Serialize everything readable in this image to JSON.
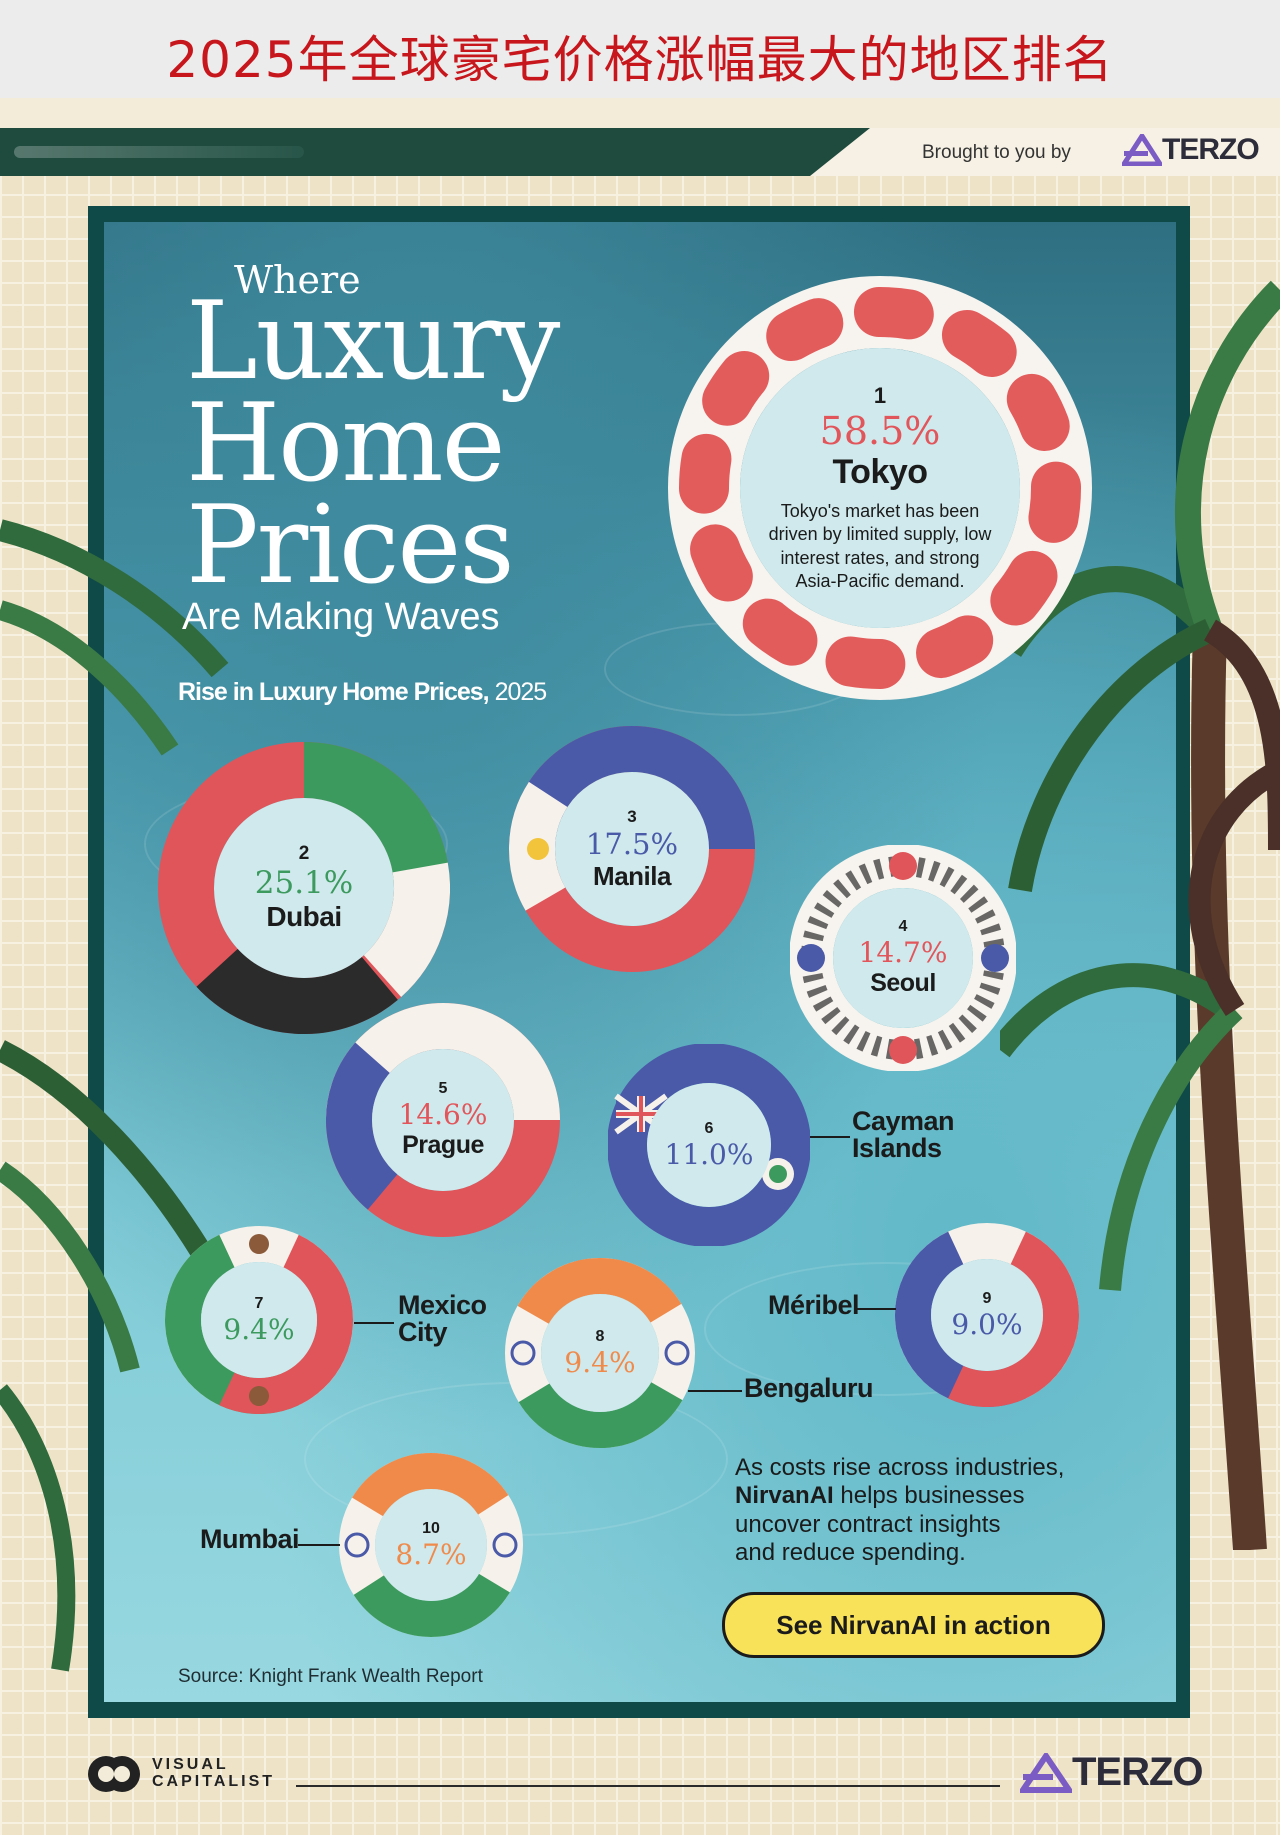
{
  "page_title": "2025年全球豪宅价格涨幅最大的地区排名",
  "header": {
    "brought_by": "Brought to you by",
    "brand": "TERZO"
  },
  "title": {
    "line1": "Where",
    "line2": "Luxury",
    "line3": "Home",
    "line4": "Prices",
    "line5": "Are Making Waves"
  },
  "subtitle": {
    "bold": "Rise in Luxury Home Prices,",
    "year": "2025"
  },
  "chart_data": {
    "type": "bar",
    "title": "Rise in Luxury Home Prices, 2025",
    "unit": "%",
    "categories": [
      "Tokyo",
      "Dubai",
      "Manila",
      "Seoul",
      "Prague",
      "Cayman Islands",
      "Mexico City",
      "Bengaluru",
      "Méribel",
      "Mumbai"
    ],
    "values": [
      58.5,
      25.1,
      17.5,
      14.7,
      14.6,
      11.0,
      9.4,
      9.4,
      9.0,
      8.7
    ],
    "items": [
      {
        "rank": "1",
        "value_label": "58.5%",
        "city": "Tokyo",
        "value": 58.5
      },
      {
        "rank": "2",
        "value_label": "25.1%",
        "city": "Dubai",
        "value": 25.1
      },
      {
        "rank": "3",
        "value_label": "17.5%",
        "city": "Manila",
        "value": 17.5
      },
      {
        "rank": "4",
        "value_label": "14.7%",
        "city": "Seoul",
        "value": 14.7
      },
      {
        "rank": "5",
        "value_label": "14.6%",
        "city": "Prague",
        "value": 14.6
      },
      {
        "rank": "6",
        "value_label": "11.0%",
        "city_line1": "Cayman",
        "city_line2": "Islands",
        "value": 11.0
      },
      {
        "rank": "7",
        "value_label": "9.4%",
        "city_line1": "Mexico",
        "city_line2": "City",
        "value": 9.4
      },
      {
        "rank": "8",
        "value_label": "9.4%",
        "city": "Bengaluru",
        "value": 9.4
      },
      {
        "rank": "9",
        "value_label": "9.0%",
        "city": "Méribel",
        "value": 9.0
      },
      {
        "rank": "10",
        "value_label": "8.7%",
        "city": "Mumbai",
        "value": 8.7
      }
    ],
    "tokyo_note": [
      "Tokyo's market has been",
      "driven by limited supply, low",
      "interest rates, and strong",
      "Asia-Pacific demand."
    ]
  },
  "colors": {
    "red": "#e0555a",
    "green": "#3c9a5e",
    "blue": "#4a5aa8",
    "orange": "#f08a4b",
    "dark": "#2b2b2b"
  },
  "promo": {
    "line1": "As costs rise across industries,",
    "brand": "NirvanAI",
    "line2_rest": " helps businesses",
    "line3": "uncover contract insights",
    "line4": "and reduce spending.",
    "cta": "See NirvanAI in action"
  },
  "source": "Source: Knight Frank Wealth Report",
  "footer": {
    "vc_line1": "VISUAL",
    "vc_line2": "CAPITALIST",
    "brand": "TERZO"
  }
}
